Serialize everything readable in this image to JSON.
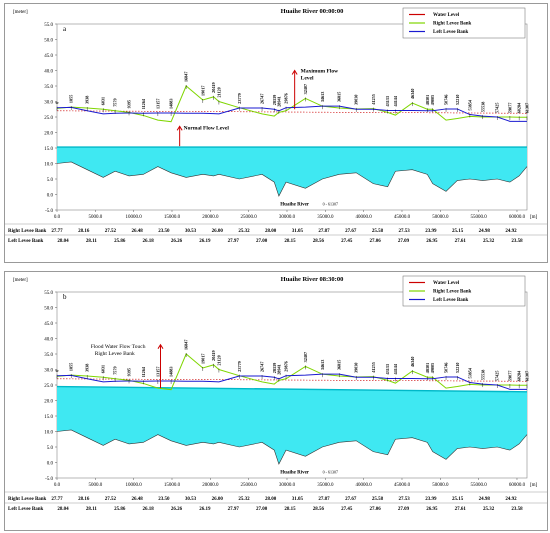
{
  "page": {
    "bg": "#ffffff"
  },
  "colors": {
    "water": "#00e5ee",
    "water_fill": "#3fe8f2",
    "right_bank": "#7fd600",
    "left_bank": "#1a1ad0",
    "water_line": "#cc0000",
    "arrow": "#cc0000"
  },
  "shared": {
    "x_tick_labels": [
      "0.0",
      "5000.0",
      "10000.0",
      "15000.0",
      "20000.0",
      "25000.0",
      "30000.0",
      "35000.0",
      "40000.0",
      "45000.0",
      "50000.0",
      "55000.0",
      "60000.0"
    ],
    "x_unit": "[m]",
    "y_unit": "[meter]",
    "y_tick_labels": [
      "55.0",
      "50.0",
      "45.0",
      "40.0",
      "35.0",
      "30.0",
      "25.0",
      "20.0",
      "15.0",
      "10.0",
      "5.0",
      "0.0",
      "-5.0"
    ],
    "legend": [
      "Water Level",
      "Right Levee Bank",
      "Left Levee Bank"
    ],
    "river_label": "Huaihe River",
    "river_range": "0 - 61307",
    "chainage_labels": [
      "0",
      "1855",
      "3938",
      "6031",
      "7579",
      "9395",
      "11264",
      "13157",
      "14883",
      "16847",
      "19017",
      "20419",
      "21120",
      "23779",
      "26747",
      "28339",
      "28941",
      "29876",
      "32407",
      "34613",
      "36815",
      "39030",
      "41255",
      "43133",
      "44144",
      "46340",
      "48301",
      "49005",
      "50746",
      "52210",
      "53854",
      "55538",
      "57425",
      "59077",
      "60284",
      "61307"
    ],
    "table_rows": [
      {
        "label": "Right Levee Bank",
        "values": [
          "27.77",
          "28.16",
          "27.52",
          "26.48",
          "23.50",
          "30.53",
          "26.00",
          "25.32",
          "28.00",
          "31.05",
          "27.87",
          "27.67",
          "25.58",
          "27.53",
          "23.99",
          "25.15",
          "24.98",
          "24.92"
        ]
      },
      {
        "label": "Left Levee Bank",
        "values": [
          "28.04",
          "28.11",
          "25.86",
          "26.18",
          "26.26",
          "26.19",
          "27.97",
          "27.00",
          "28.15",
          "28.56",
          "27.45",
          "27.06",
          "27.09",
          "26.95",
          "27.61",
          "25.32",
          "23.58"
        ]
      }
    ]
  },
  "panels": [
    {
      "id": "a",
      "letter": "a",
      "title": "Huaihe River  00:00:00",
      "annotations": [
        {
          "text": "Maximum Flow Level"
        },
        {
          "text": "Normal Flow Level"
        }
      ]
    },
    {
      "id": "b",
      "letter": "b",
      "title": "Huaihe River   08:30:00",
      "annotations": [
        {
          "text": "Flood Water Flow Touch Right Levee Bank"
        }
      ]
    }
  ],
  "chart_data": [
    {
      "type": "area",
      "title": "Huaihe River  00:00:00",
      "xlabel": "[m]",
      "ylabel": "[meter]",
      "xlim": [
        0,
        61307
      ],
      "ylim": [
        -5,
        55
      ],
      "series": [
        {
          "name": "Water Level",
          "x": [
            0,
            61307
          ],
          "y": [
            15.3,
            15.3
          ]
        },
        {
          "name": "Right Levee Bank",
          "x": [
            0,
            1855,
            3938,
            6031,
            7579,
            9395,
            11264,
            13157,
            14883,
            16847,
            19017,
            20419,
            21120,
            23779,
            26747,
            28339,
            28941,
            29876,
            32407,
            34613,
            36815,
            39030,
            41255,
            43133,
            44144,
            46340,
            48301,
            49005,
            50746,
            52210,
            53854,
            55538,
            57425,
            59077,
            60284,
            61307
          ],
          "y": [
            27.8,
            28.2,
            27.9,
            27.5,
            27.0,
            26.5,
            25.5,
            24.0,
            23.5,
            35.0,
            30.5,
            31.5,
            30.0,
            28.0,
            26.0,
            25.3,
            26.5,
            27.0,
            31.0,
            28.5,
            27.9,
            27.6,
            27.7,
            26.5,
            25.6,
            29.5,
            27.5,
            27.5,
            24.0,
            24.5,
            25.2,
            25.0,
            25.0,
            25.0,
            24.9,
            24.9
          ]
        },
        {
          "name": "Left Levee Bank",
          "x": [
            0,
            1855,
            3938,
            6031,
            7579,
            9395,
            11264,
            13157,
            14883,
            16847,
            19017,
            20419,
            21120,
            23779,
            26747,
            28339,
            28941,
            29876,
            32407,
            34613,
            36815,
            39030,
            41255,
            43133,
            44144,
            46340,
            48301,
            49005,
            50746,
            52210,
            53854,
            55538,
            57425,
            59077,
            60284,
            61307
          ],
          "y": [
            28.0,
            28.1,
            27.0,
            26.0,
            26.2,
            26.3,
            26.2,
            26.3,
            26.3,
            26.2,
            26.2,
            26.1,
            26.0,
            27.9,
            27.9,
            27.5,
            27.0,
            28.0,
            28.2,
            28.5,
            28.5,
            27.5,
            27.5,
            27.1,
            27.1,
            27.1,
            27.0,
            27.0,
            27.6,
            27.6,
            25.8,
            25.3,
            25.0,
            23.6,
            23.6,
            23.6
          ]
        },
        {
          "name": "Riverbed",
          "x": [
            0,
            1855,
            3938,
            6031,
            7579,
            9395,
            11264,
            13157,
            14883,
            16847,
            19017,
            20419,
            21120,
            23779,
            26747,
            28339,
            28941,
            29876,
            32407,
            34613,
            36815,
            39030,
            41255,
            43133,
            44144,
            46340,
            48301,
            49005,
            50746,
            52210,
            53854,
            55538,
            57425,
            59077,
            60284,
            61307
          ],
          "y": [
            10.0,
            10.5,
            8.0,
            5.5,
            7.5,
            6.0,
            6.5,
            9.0,
            7.0,
            5.5,
            6.5,
            6.0,
            6.5,
            5.0,
            6.5,
            4.0,
            -0.5,
            4.0,
            2.0,
            5.0,
            6.5,
            7.0,
            3.5,
            2.5,
            7.5,
            8.0,
            6.5,
            3.5,
            1.0,
            4.5,
            5.0,
            4.5,
            5.0,
            4.0,
            6.0,
            9.0
          ]
        }
      ]
    },
    {
      "type": "area",
      "title": "Huaihe River   08:30:00",
      "xlabel": "[m]",
      "ylabel": "[meter]",
      "xlim": [
        0,
        61307
      ],
      "ylim": [
        -5,
        55
      ],
      "series": [
        {
          "name": "Water Level",
          "x": [
            0,
            61307
          ],
          "y": [
            24.5,
            22.8
          ]
        },
        {
          "name": "Right Levee Bank",
          "x": [
            0,
            1855,
            3938,
            6031,
            7579,
            9395,
            11264,
            13157,
            14883,
            16847,
            19017,
            20419,
            21120,
            23779,
            26747,
            28339,
            28941,
            29876,
            32407,
            34613,
            36815,
            39030,
            41255,
            43133,
            44144,
            46340,
            48301,
            49005,
            50746,
            52210,
            53854,
            55538,
            57425,
            59077,
            60284,
            61307
          ],
          "y": [
            27.8,
            28.2,
            27.9,
            27.5,
            27.0,
            26.5,
            25.5,
            24.0,
            23.5,
            35.0,
            30.5,
            31.5,
            30.0,
            28.0,
            26.0,
            25.3,
            26.5,
            27.0,
            31.0,
            28.5,
            27.9,
            27.6,
            27.7,
            26.5,
            25.6,
            29.5,
            27.5,
            27.5,
            24.0,
            24.5,
            25.2,
            25.0,
            25.0,
            25.0,
            24.9,
            24.9
          ]
        },
        {
          "name": "Left Levee Bank",
          "x": [
            0,
            1855,
            3938,
            6031,
            7579,
            9395,
            11264,
            13157,
            14883,
            16847,
            19017,
            20419,
            21120,
            23779,
            26747,
            28339,
            28941,
            29876,
            32407,
            34613,
            36815,
            39030,
            41255,
            43133,
            44144,
            46340,
            48301,
            49005,
            50746,
            52210,
            53854,
            55538,
            57425,
            59077,
            60284,
            61307
          ],
          "y": [
            28.0,
            28.1,
            27.0,
            26.0,
            26.2,
            26.3,
            26.2,
            26.3,
            26.3,
            26.2,
            26.2,
            26.1,
            26.0,
            27.9,
            27.9,
            27.5,
            27.0,
            28.0,
            28.2,
            28.5,
            28.5,
            27.5,
            27.5,
            27.1,
            27.1,
            27.1,
            27.0,
            27.0,
            27.6,
            27.6,
            25.8,
            25.3,
            25.0,
            23.6,
            23.6,
            23.6
          ]
        },
        {
          "name": "Riverbed",
          "x": [
            0,
            1855,
            3938,
            6031,
            7579,
            9395,
            11264,
            13157,
            14883,
            16847,
            19017,
            20419,
            21120,
            23779,
            26747,
            28339,
            28941,
            29876,
            32407,
            34613,
            36815,
            39030,
            41255,
            43133,
            44144,
            46340,
            48301,
            49005,
            50746,
            52210,
            53854,
            55538,
            57425,
            59077,
            60284,
            61307
          ],
          "y": [
            10.0,
            10.5,
            8.0,
            5.5,
            7.5,
            6.0,
            6.5,
            9.0,
            7.0,
            5.5,
            6.5,
            6.0,
            6.5,
            5.0,
            6.5,
            4.0,
            -0.5,
            4.0,
            2.0,
            5.0,
            6.5,
            7.0,
            3.5,
            2.5,
            7.5,
            8.0,
            6.5,
            3.5,
            1.0,
            4.5,
            5.0,
            4.5,
            5.0,
            4.0,
            6.0,
            9.0
          ]
        }
      ]
    }
  ]
}
